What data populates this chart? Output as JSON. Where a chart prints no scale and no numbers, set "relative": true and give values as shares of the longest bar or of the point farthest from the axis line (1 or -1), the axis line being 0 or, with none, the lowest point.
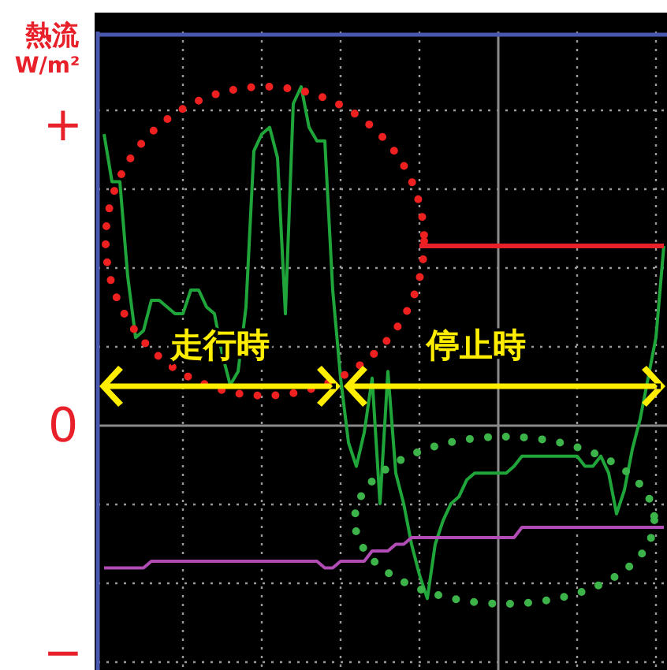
{
  "chart_data": {
    "type": "line",
    "ylabel": "熱流 W/m²",
    "relative": true,
    "categories": [
      null,
      null,
      null,
      null,
      null,
      null,
      null,
      null,
      null,
      null,
      null,
      null,
      null,
      null,
      null,
      null,
      null,
      null,
      null,
      null,
      null,
      null,
      null,
      null,
      null,
      null,
      null,
      null,
      null,
      null,
      null,
      null,
      null,
      null,
      null,
      null,
      null,
      null,
      null,
      null,
      null,
      null,
      null,
      null,
      null,
      null,
      null,
      null,
      null,
      null,
      null,
      null,
      null,
      null,
      null,
      null,
      null,
      null,
      null,
      null,
      null,
      null,
      null,
      null,
      null,
      null,
      null,
      null,
      null,
      null,
      null,
      null
    ],
    "series": [
      {
        "color": "#1fa53a",
        "values": [
          0.86,
          0.72,
          0.72,
          0.44,
          0.26,
          0.28,
          0.37,
          0.37,
          0.35,
          0.33,
          0.33,
          0.4,
          0.4,
          0.35,
          0.33,
          0.21,
          0.12,
          0.16,
          0.35,
          0.81,
          0.86,
          0.88,
          0.79,
          0.33,
          0.95,
          1,
          0.88,
          0.84,
          0.84,
          0.4,
          0.14,
          -0.05,
          -0.12,
          -0.02,
          0.14,
          -0.23,
          0.16,
          -0.14,
          -0.23,
          -0.35,
          -0.44,
          -0.51,
          -0.35,
          -0.28,
          -0.23,
          -0.21,
          -0.16,
          -0.14,
          -0.14,
          -0.14,
          -0.14,
          -0.14,
          -0.12,
          -0.09,
          -0.09,
          -0.09,
          -0.09,
          -0.09,
          -0.09,
          -0.09,
          -0.09,
          -0.12,
          -0.12,
          -0.09,
          -0.14,
          -0.26,
          -0.19,
          -0.07,
          0.02,
          0.14,
          0.26,
          0.53
        ]
      },
      {
        "color": "#b04cb4",
        "values": [
          -0.42,
          -0.42,
          -0.42,
          -0.42,
          -0.42,
          -0.42,
          -0.4,
          -0.4,
          -0.4,
          -0.4,
          -0.4,
          -0.4,
          -0.4,
          -0.4,
          -0.4,
          -0.4,
          -0.4,
          -0.4,
          -0.4,
          -0.4,
          -0.4,
          -0.4,
          -0.4,
          -0.4,
          -0.4,
          -0.4,
          -0.4,
          -0.4,
          -0.42,
          -0.42,
          -0.4,
          -0.4,
          -0.4,
          -0.4,
          -0.37,
          -0.37,
          -0.37,
          -0.35,
          -0.35,
          -0.33,
          -0.33,
          -0.33,
          -0.33,
          -0.33,
          -0.33,
          -0.33,
          -0.33,
          -0.33,
          -0.33,
          -0.33,
          -0.33,
          -0.33,
          -0.33,
          -0.3,
          -0.3,
          -0.3,
          -0.3,
          -0.3,
          -0.3,
          -0.3,
          -0.3,
          -0.3,
          -0.3,
          -0.3,
          -0.3,
          -0.3,
          -0.3,
          -0.3,
          -0.3,
          -0.3,
          -0.3,
          -0.3
        ]
      },
      {
        "color": "#e8202a",
        "values": [
          null,
          null,
          null,
          null,
          null,
          null,
          null,
          null,
          null,
          null,
          null,
          null,
          null,
          null,
          null,
          null,
          null,
          null,
          null,
          null,
          null,
          null,
          null,
          null,
          null,
          null,
          null,
          null,
          null,
          null,
          null,
          null,
          null,
          null,
          null,
          null,
          null,
          null,
          null,
          null,
          0.53,
          0.53,
          0.53,
          0.53,
          0.53,
          0.53,
          0.53,
          0.53,
          0.53,
          0.53,
          0.53,
          0.53,
          0.53,
          0.53,
          0.53,
          0.53,
          0.53,
          0.53,
          0.53,
          0.53,
          0.53,
          0.53,
          0.53,
          0.53,
          0.53,
          0.53,
          0.53,
          0.53,
          0.53,
          0.53,
          0.53,
          0.53
        ]
      }
    ],
    "grid": true,
    "annotations": [
      "走行時",
      "停止時",
      "+",
      "0",
      "−"
    ]
  }
}
